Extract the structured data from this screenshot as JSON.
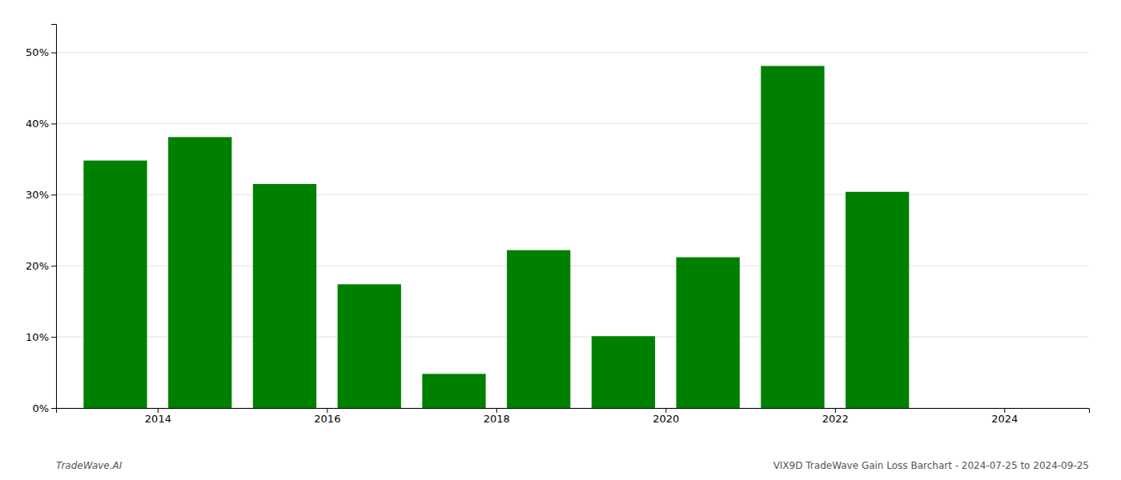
{
  "chart_data": {
    "type": "bar",
    "x": [
      2013.5,
      2014.5,
      2015.5,
      2016.5,
      2017.5,
      2018.5,
      2019.5,
      2020.5,
      2021.5,
      2022.5
    ],
    "values": [
      0.348,
      0.381,
      0.315,
      0.174,
      0.048,
      0.222,
      0.101,
      0.212,
      0.481,
      0.304
    ],
    "color": "#008000",
    "xlim": [
      2012.8,
      2025.0
    ],
    "xticks": [
      2014,
      2016,
      2018,
      2020,
      2022,
      2024
    ],
    "ylim": [
      0,
      0.54
    ],
    "yticks": [
      {
        "value": 0,
        "label": "0%"
      },
      {
        "value": 0.1,
        "label": "10%"
      },
      {
        "value": 0.2,
        "label": "20%"
      },
      {
        "value": 0.3,
        "label": "30%"
      },
      {
        "value": 0.4,
        "label": "40%"
      },
      {
        "value": 0.5,
        "label": "50%"
      }
    ],
    "grid": true,
    "annotations": [
      "TradeWave.AI",
      "VIX9D TradeWave Gain Loss Barchart - 2024-07-25 to 2024-09-25"
    ]
  }
}
